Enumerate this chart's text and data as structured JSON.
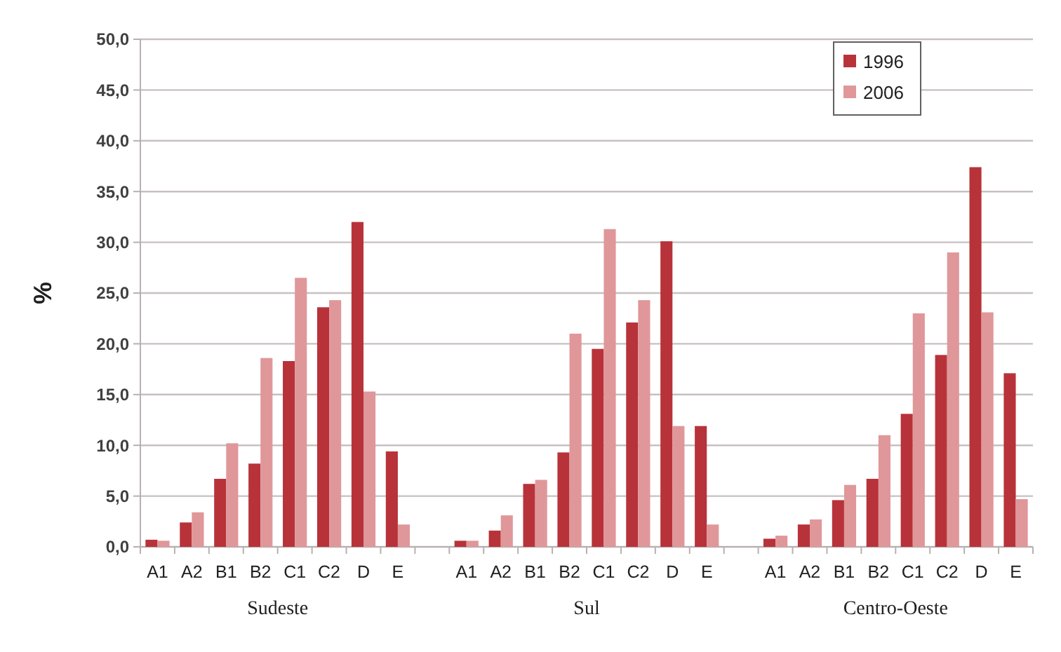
{
  "chart_data": {
    "type": "bar",
    "ylabel": "%",
    "categories": [
      "A1",
      "A2",
      "B1",
      "B2",
      "C1",
      "C2",
      "D",
      "E",
      null,
      "A1",
      "A2",
      "B1",
      "B2",
      "C1",
      "C2",
      "D",
      "E",
      null,
      "A1",
      "A2",
      "B1",
      "B2",
      "C1",
      "C2",
      "D",
      "E"
    ],
    "series": [
      {
        "name": "1996",
        "color": "#b8323a",
        "values": [
          0.7,
          2.4,
          6.7,
          8.2,
          18.3,
          23.6,
          32.0,
          9.4,
          null,
          0.6,
          1.6,
          6.2,
          9.3,
          19.5,
          22.1,
          30.1,
          11.9,
          null,
          0.8,
          2.2,
          4.6,
          6.7,
          13.1,
          18.9,
          37.4,
          17.1
        ]
      },
      {
        "name": "2006",
        "color": "#e0979a",
        "values": [
          0.6,
          3.4,
          10.2,
          18.6,
          26.5,
          24.3,
          15.3,
          2.2,
          null,
          0.6,
          3.1,
          6.6,
          21.0,
          31.3,
          24.3,
          11.9,
          2.2,
          null,
          1.1,
          2.7,
          6.1,
          11.0,
          23.0,
          29.0,
          23.1,
          4.7
        ]
      }
    ],
    "ylim": [
      0,
      50
    ],
    "yticks": [
      {
        "value": 0,
        "label": "0,0"
      },
      {
        "value": 5,
        "label": "5,0"
      },
      {
        "value": 10,
        "label": "10,0"
      },
      {
        "value": 15,
        "label": "15,0"
      },
      {
        "value": 20,
        "label": "20,0"
      },
      {
        "value": 25,
        "label": "25,0"
      },
      {
        "value": 30,
        "label": "30,0"
      },
      {
        "value": 35,
        "label": "35,0"
      },
      {
        "value": 40,
        "label": "40,0"
      },
      {
        "value": 45,
        "label": "45,0"
      },
      {
        "value": 50,
        "label": "50,0"
      }
    ],
    "grid": "y",
    "legend": "top right",
    "annotations": [
      "Sudeste",
      "Sul",
      "Centro-Oeste"
    ]
  }
}
